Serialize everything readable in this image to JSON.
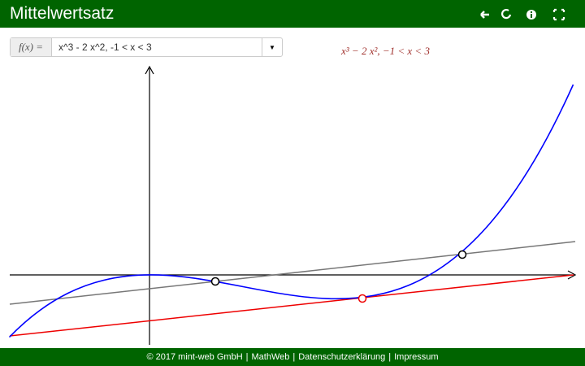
{
  "header": {
    "title": "Mittelwertsatz"
  },
  "input": {
    "label": "f(x) =",
    "value": "x^3 - 2 x^2, -1 < x < 3"
  },
  "formula": "x³ − 2 x², −1 < x < 3",
  "footer": {
    "links": [
      "© 2017 mint-web GmbH",
      "MathWeb",
      "Datenschutzerklärung",
      "Impressum"
    ],
    "separator": "|"
  }
}
